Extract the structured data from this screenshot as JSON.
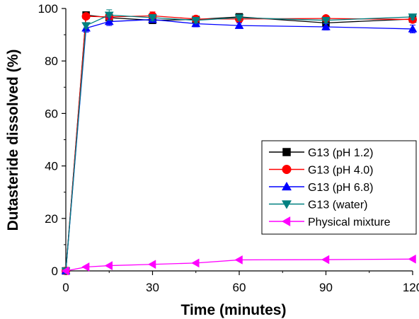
{
  "chart_data": {
    "type": "line",
    "xlabel": "Time (minutes)",
    "ylabel": "Dutasteride dissolved (%)",
    "xlim": [
      0,
      120
    ],
    "ylim": [
      0,
      100
    ],
    "xticks": [
      0,
      30,
      60,
      90,
      120
    ],
    "yticks": [
      0,
      20,
      40,
      60,
      80,
      100
    ],
    "grid": false,
    "legend_position": "right",
    "series": [
      {
        "name": "G13 (pH 1.2)",
        "color": "#000000",
        "marker": "square",
        "x": [
          0,
          7,
          15,
          30,
          45,
          60,
          90,
          120
        ],
        "y": [
          0,
          97.5,
          96.5,
          95.5,
          95.8,
          96.8,
          94.5,
          96.0
        ],
        "err": [
          0,
          0.8,
          1.0,
          1.2,
          1.0,
          1.0,
          1.2,
          1.0
        ]
      },
      {
        "name": "G13 (pH 4.0)",
        "color": "#ff0000",
        "marker": "circle",
        "x": [
          0,
          7,
          15,
          30,
          45,
          60,
          90,
          120
        ],
        "y": [
          0,
          97.0,
          96.8,
          97.2,
          96.0,
          96.0,
          96.2,
          95.8
        ],
        "err": [
          0,
          1.0,
          1.5,
          1.5,
          1.0,
          1.0,
          1.0,
          1.0
        ]
      },
      {
        "name": "G13 (pH 6.8)",
        "color": "#0000ff",
        "marker": "triangle-up",
        "x": [
          0,
          7,
          15,
          30,
          45,
          60,
          90,
          120
        ],
        "y": [
          0,
          92.5,
          95.0,
          95.8,
          94.2,
          93.5,
          93.0,
          92.2
        ],
        "err": [
          0,
          1.5,
          1.5,
          1.0,
          1.2,
          1.0,
          1.2,
          1.5
        ]
      },
      {
        "name": "G13 (water)",
        "color": "#008080",
        "marker": "triangle-down",
        "x": [
          0,
          7,
          15,
          30,
          45,
          60,
          90,
          120
        ],
        "y": [
          0,
          93.5,
          97.5,
          96.5,
          95.5,
          96.5,
          95.5,
          96.8
        ],
        "err": [
          0,
          1.0,
          2.0,
          1.2,
          1.0,
          1.0,
          1.0,
          1.0
        ]
      },
      {
        "name": "Physical mixture",
        "color": "#ff00ff",
        "marker": "triangle-left",
        "x": [
          0,
          7,
          15,
          30,
          45,
          60,
          90,
          120
        ],
        "y": [
          0,
          1.5,
          2.0,
          2.5,
          3.0,
          4.2,
          4.3,
          4.5
        ],
        "err": [
          0,
          0.3,
          0.3,
          0.3,
          0.3,
          0.3,
          0.3,
          0.3
        ]
      }
    ]
  }
}
